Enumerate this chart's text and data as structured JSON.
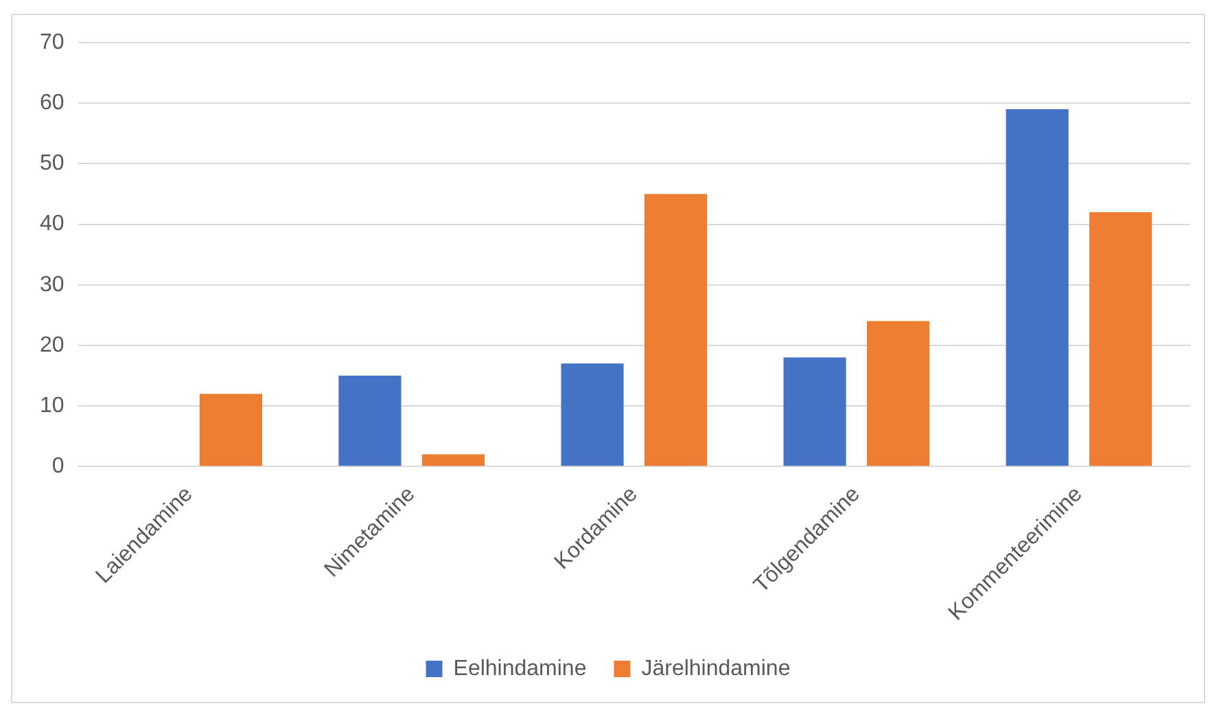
{
  "chart_data": {
    "type": "bar",
    "categories": [
      "Laiendamine",
      "Nimetamine",
      "Kordamine",
      "Tõlgendamine",
      "Kommenteerimine"
    ],
    "series": [
      {
        "name": "Eelhindamine",
        "color": "#4472c4",
        "values": [
          0,
          15,
          17,
          18,
          59
        ]
      },
      {
        "name": "Järelhindamine",
        "color": "#ed7d31",
        "values": [
          12,
          2,
          45,
          24,
          42
        ]
      }
    ],
    "ylim": [
      0,
      70
    ],
    "yticks": [
      0,
      10,
      20,
      30,
      40,
      50,
      60,
      70
    ],
    "grid": "y",
    "legend": "bottom"
  }
}
